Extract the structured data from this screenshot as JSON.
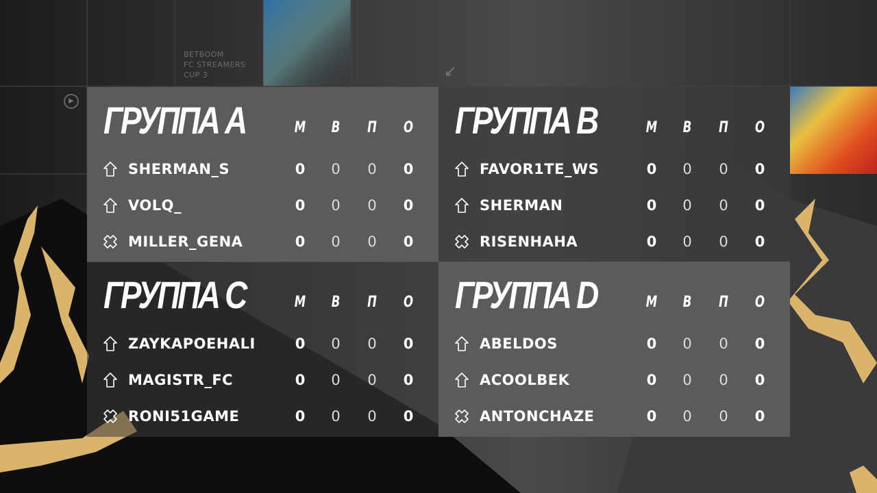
{
  "brand": {
    "line1": "BETBOOM",
    "line2": "FC STREAMERS",
    "line3": "CUP 3"
  },
  "columns": [
    "М",
    "В",
    "П",
    "О"
  ],
  "colors": {
    "panel": "#5b5b5b",
    "gold": "#d9b46a"
  },
  "groups": [
    {
      "title": "ГРУППА A",
      "players": [
        {
          "name": "SHERMAN_S",
          "icon": "arrow-up-icon",
          "stats": [
            "0",
            "0",
            "0",
            "0"
          ]
        },
        {
          "name": "VOLQ_",
          "icon": "arrow-up-icon",
          "stats": [
            "0",
            "0",
            "0",
            "0"
          ]
        },
        {
          "name": "MILLER_GENA",
          "icon": "cross-icon",
          "stats": [
            "0",
            "0",
            "0",
            "0"
          ]
        }
      ]
    },
    {
      "title": "ГРУППА B",
      "players": [
        {
          "name": "FAVOR1TE_WS",
          "icon": "arrow-up-icon",
          "stats": [
            "0",
            "0",
            "0",
            "0"
          ]
        },
        {
          "name": "SHERMAN",
          "icon": "arrow-up-icon",
          "stats": [
            "0",
            "0",
            "0",
            "0"
          ]
        },
        {
          "name": "RISENHAHA",
          "icon": "cross-icon",
          "stats": [
            "0",
            "0",
            "0",
            "0"
          ]
        }
      ]
    },
    {
      "title": "ГРУППА C",
      "players": [
        {
          "name": "ZAYKAPOEHALI",
          "icon": "arrow-up-icon",
          "stats": [
            "0",
            "0",
            "0",
            "0"
          ]
        },
        {
          "name": "MAGISTR_FC",
          "icon": "arrow-up-icon",
          "stats": [
            "0",
            "0",
            "0",
            "0"
          ]
        },
        {
          "name": "RONI51GAME",
          "icon": "cross-icon",
          "stats": [
            "0",
            "0",
            "0",
            "0"
          ]
        }
      ]
    },
    {
      "title": "ГРУППА D",
      "players": [
        {
          "name": "ABELDOS",
          "icon": "arrow-up-icon",
          "stats": [
            "0",
            "0",
            "0",
            "0"
          ]
        },
        {
          "name": "ACOOLBEK",
          "icon": "arrow-up-icon",
          "stats": [
            "0",
            "0",
            "0",
            "0"
          ]
        },
        {
          "name": "ANTONCHAZE",
          "icon": "cross-icon",
          "stats": [
            "0",
            "0",
            "0",
            "0"
          ]
        }
      ]
    }
  ]
}
